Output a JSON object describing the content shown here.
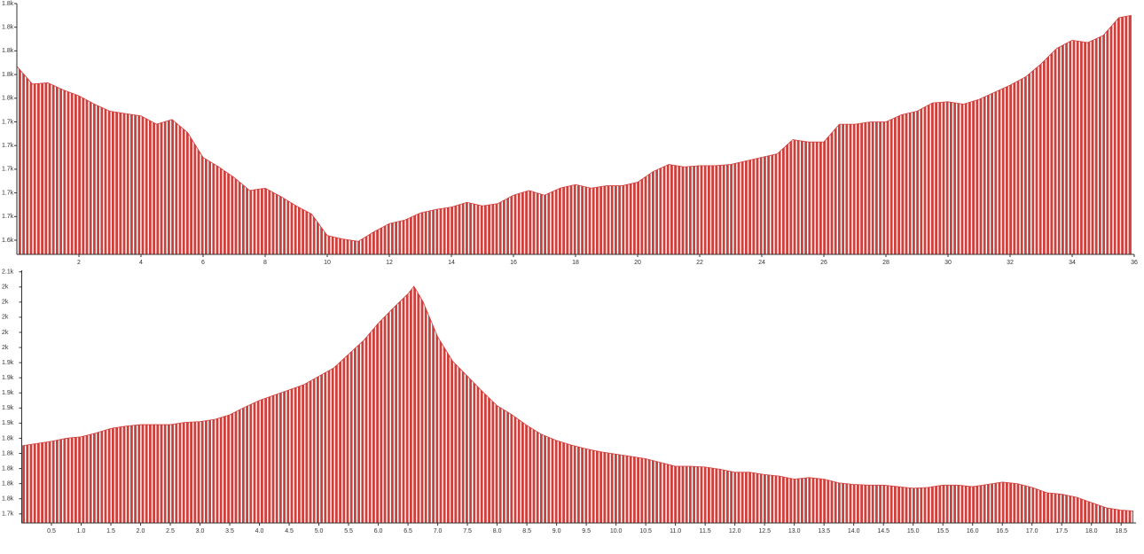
{
  "chart_data": [
    {
      "type": "area",
      "color": "#cf3f3c",
      "x": [
        0,
        0.5,
        1,
        1.5,
        2,
        2.5,
        3,
        3.5,
        4,
        4.5,
        5,
        5.5,
        6,
        6.5,
        7,
        7.5,
        8,
        8.5,
        9,
        9.5,
        10,
        10.5,
        11,
        11.5,
        12,
        12.5,
        13,
        13.5,
        14,
        14.5,
        15,
        15.5,
        16,
        16.5,
        17,
        17.5,
        18,
        18.5,
        19,
        19.5,
        20,
        20.5,
        21,
        21.5,
        22,
        22.5,
        23,
        23.5,
        24,
        24.5,
        25,
        25.5,
        26,
        26.5,
        27,
        27.5,
        28,
        28.5,
        29,
        29.5,
        30,
        30.5,
        31,
        31.5,
        32,
        32.5,
        33,
        33.5,
        34,
        34.5,
        35,
        35.5,
        35.9
      ],
      "values": [
        1787,
        1772,
        1773,
        1767,
        1762,
        1755,
        1749,
        1747,
        1745,
        1738,
        1742,
        1731,
        1710,
        1702,
        1693,
        1682,
        1684,
        1677,
        1669,
        1662,
        1644,
        1641,
        1639,
        1647,
        1654,
        1657,
        1663,
        1666,
        1668,
        1672,
        1669,
        1671,
        1678,
        1682,
        1678,
        1684,
        1687,
        1684,
        1686,
        1686,
        1689,
        1698,
        1704,
        1702,
        1703,
        1703,
        1704,
        1707,
        1710,
        1713,
        1725,
        1723,
        1723,
        1738,
        1738,
        1740,
        1740,
        1746,
        1749,
        1756,
        1757,
        1755,
        1759,
        1765,
        1771,
        1778,
        1789,
        1802,
        1809,
        1807,
        1813,
        1828,
        1830
      ],
      "xlim": [
        0,
        36
      ],
      "xticks": [
        2,
        4,
        6,
        8,
        10,
        12,
        14,
        16,
        18,
        20,
        22,
        24,
        26,
        28,
        30,
        32,
        34,
        36
      ],
      "ylim": [
        1628,
        1840
      ],
      "yticks": [
        {
          "value": 1640,
          "label": "1.6k"
        },
        {
          "value": 1660,
          "label": "1.7k"
        },
        {
          "value": 1680,
          "label": "1.7k"
        },
        {
          "value": 1700,
          "label": "1.7k"
        },
        {
          "value": 1720,
          "label": "1.7k"
        },
        {
          "value": 1740,
          "label": "1.7k"
        },
        {
          "value": 1760,
          "label": "1.8k"
        },
        {
          "value": 1780,
          "label": "1.8k"
        },
        {
          "value": 1800,
          "label": "1.8k"
        },
        {
          "value": 1820,
          "label": "1.8k"
        },
        {
          "value": 1840,
          "label": "1.8k"
        }
      ]
    },
    {
      "type": "area",
      "color": "#cf3f3c",
      "x": [
        0,
        0.25,
        0.5,
        0.75,
        1,
        1.25,
        1.5,
        1.75,
        2,
        2.25,
        2.5,
        2.75,
        3,
        3.25,
        3.5,
        3.75,
        4,
        4.25,
        4.5,
        4.75,
        5,
        5.25,
        5.5,
        5.75,
        6,
        6.25,
        6.5,
        6.6,
        6.75,
        7,
        7.25,
        7.5,
        7.75,
        8,
        8.25,
        8.5,
        8.75,
        9,
        9.25,
        9.5,
        9.75,
        10,
        10.25,
        10.5,
        10.75,
        11,
        11.25,
        11.5,
        11.75,
        12,
        12.25,
        12.5,
        12.75,
        13,
        13.25,
        13.5,
        13.75,
        14,
        14.25,
        14.5,
        14.75,
        15,
        15.25,
        15.5,
        15.75,
        16,
        16.25,
        16.5,
        16.75,
        17,
        17.25,
        17.5,
        17.75,
        18,
        18.25,
        18.5,
        18.7
      ],
      "values": [
        1830,
        1833,
        1836,
        1840,
        1842,
        1847,
        1853,
        1856,
        1858,
        1858,
        1858,
        1861,
        1862,
        1865,
        1871,
        1881,
        1890,
        1897,
        1904,
        1911,
        1922,
        1933,
        1951,
        1969,
        1992,
        2012,
        2031,
        2041,
        2021,
        1974,
        1942,
        1922,
        1902,
        1883,
        1871,
        1857,
        1845,
        1837,
        1831,
        1826,
        1822,
        1819,
        1816,
        1813,
        1808,
        1803,
        1803,
        1802,
        1799,
        1795,
        1795,
        1792,
        1790,
        1786,
        1788,
        1786,
        1781,
        1779,
        1778,
        1778,
        1776,
        1774,
        1775,
        1778,
        1778,
        1776,
        1779,
        1782,
        1780,
        1775,
        1768,
        1766,
        1762,
        1755,
        1748,
        1745,
        1744
      ],
      "xlim": [
        0,
        18.75
      ],
      "xticks": [
        0.5,
        {
          "value": 1,
          "label": "1.0"
        },
        1.5,
        {
          "value": 2,
          "label": "2.0"
        },
        2.5,
        {
          "value": 3,
          "label": "3.0"
        },
        3.5,
        {
          "value": 4,
          "label": "4.0"
        },
        4.5,
        {
          "value": 5,
          "label": "5.0"
        },
        5.5,
        {
          "value": 6,
          "label": "6.0"
        },
        6.5,
        {
          "value": 7,
          "label": "7.0"
        },
        7.5,
        {
          "value": 8,
          "label": "8.0"
        },
        8.5,
        {
          "value": 9,
          "label": "9.0"
        },
        9.5,
        {
          "value": 10,
          "label": "10.0"
        },
        10.5,
        {
          "value": 11,
          "label": "11.0"
        },
        11.5,
        {
          "value": 12,
          "label": "12.0"
        },
        12.5,
        {
          "value": 13,
          "label": "13.0"
        },
        13.5,
        {
          "value": 14,
          "label": "14.0"
        },
        14.5,
        {
          "value": 15,
          "label": "15.0"
        },
        15.5,
        {
          "value": 16,
          "label": "16.0"
        },
        16.5,
        {
          "value": 17,
          "label": "17.0"
        },
        17.5,
        {
          "value": 18,
          "label": "18.0"
        },
        18.5
      ],
      "ylim": [
        1728,
        2062
      ],
      "yticks": [
        {
          "value": 1740,
          "label": "1.7k"
        },
        {
          "value": 1760,
          "label": "1.8k"
        },
        {
          "value": 1780,
          "label": "1.8k"
        },
        {
          "value": 1800,
          "label": "1.8k"
        },
        {
          "value": 1820,
          "label": "1.8k"
        },
        {
          "value": 1840,
          "label": "1.8k"
        },
        {
          "value": 1860,
          "label": "1.9k"
        },
        {
          "value": 1880,
          "label": "1.9k"
        },
        {
          "value": 1900,
          "label": "1.9k"
        },
        {
          "value": 1920,
          "label": "1.9k"
        },
        {
          "value": 1940,
          "label": "1.9k"
        },
        {
          "value": 1960,
          "label": "2k"
        },
        {
          "value": 1980,
          "label": "2k"
        },
        {
          "value": 2000,
          "label": "2k"
        },
        {
          "value": 2020,
          "label": "2k"
        },
        {
          "value": 2040,
          "label": "2k"
        },
        {
          "value": 2060,
          "label": "2.1k"
        }
      ]
    }
  ]
}
